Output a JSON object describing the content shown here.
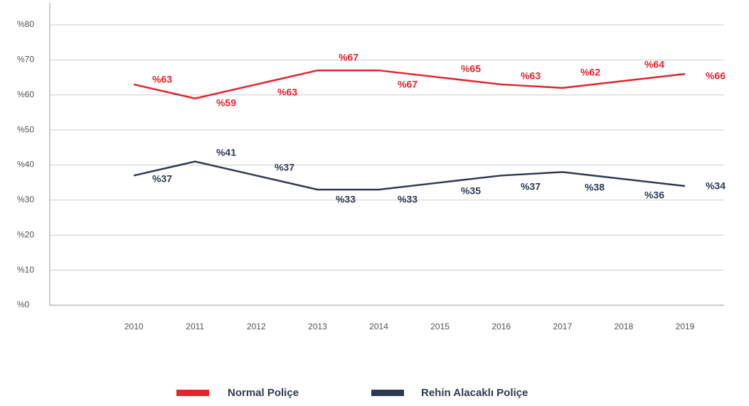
{
  "chart_data": {
    "type": "line",
    "categories": [
      "2010",
      "2011",
      "2012",
      "2013",
      "2014",
      "2015",
      "2016",
      "2017",
      "2018",
      "2019"
    ],
    "series": [
      {
        "name": "Normal Poliçe",
        "color": "#e5232b",
        "values": [
          63,
          59,
          63,
          67,
          67,
          65,
          63,
          62,
          64,
          66
        ],
        "value_labels": [
          "%63",
          "%59",
          "%63",
          "%67",
          "%67",
          "%65",
          "%63",
          "%62",
          "%64",
          "%66"
        ]
      },
      {
        "name": "Rehin Alacaklı Poliçe",
        "color": "#2e3a55",
        "values": [
          37,
          41,
          37,
          33,
          33,
          35,
          37,
          38,
          36,
          34
        ],
        "value_labels": [
          "%37",
          "%41",
          "%37",
          "%33",
          "%33",
          "%35",
          "%37",
          "%38",
          "%36",
          "%34"
        ]
      }
    ],
    "ylim": [
      0,
      80
    ],
    "yticks": [
      {
        "value": 0,
        "label": "%0"
      },
      {
        "value": 10,
        "label": "%10"
      },
      {
        "value": 20,
        "label": "%20"
      },
      {
        "value": 30,
        "label": "%30"
      },
      {
        "value": 40,
        "label": "%40"
      },
      {
        "value": 50,
        "label": "%50"
      },
      {
        "value": 60,
        "label": "%60"
      },
      {
        "value": 70,
        "label": "%70"
      },
      {
        "value": 80,
        "label": "%80"
      }
    ],
    "grid": true,
    "legend": "bottom"
  }
}
